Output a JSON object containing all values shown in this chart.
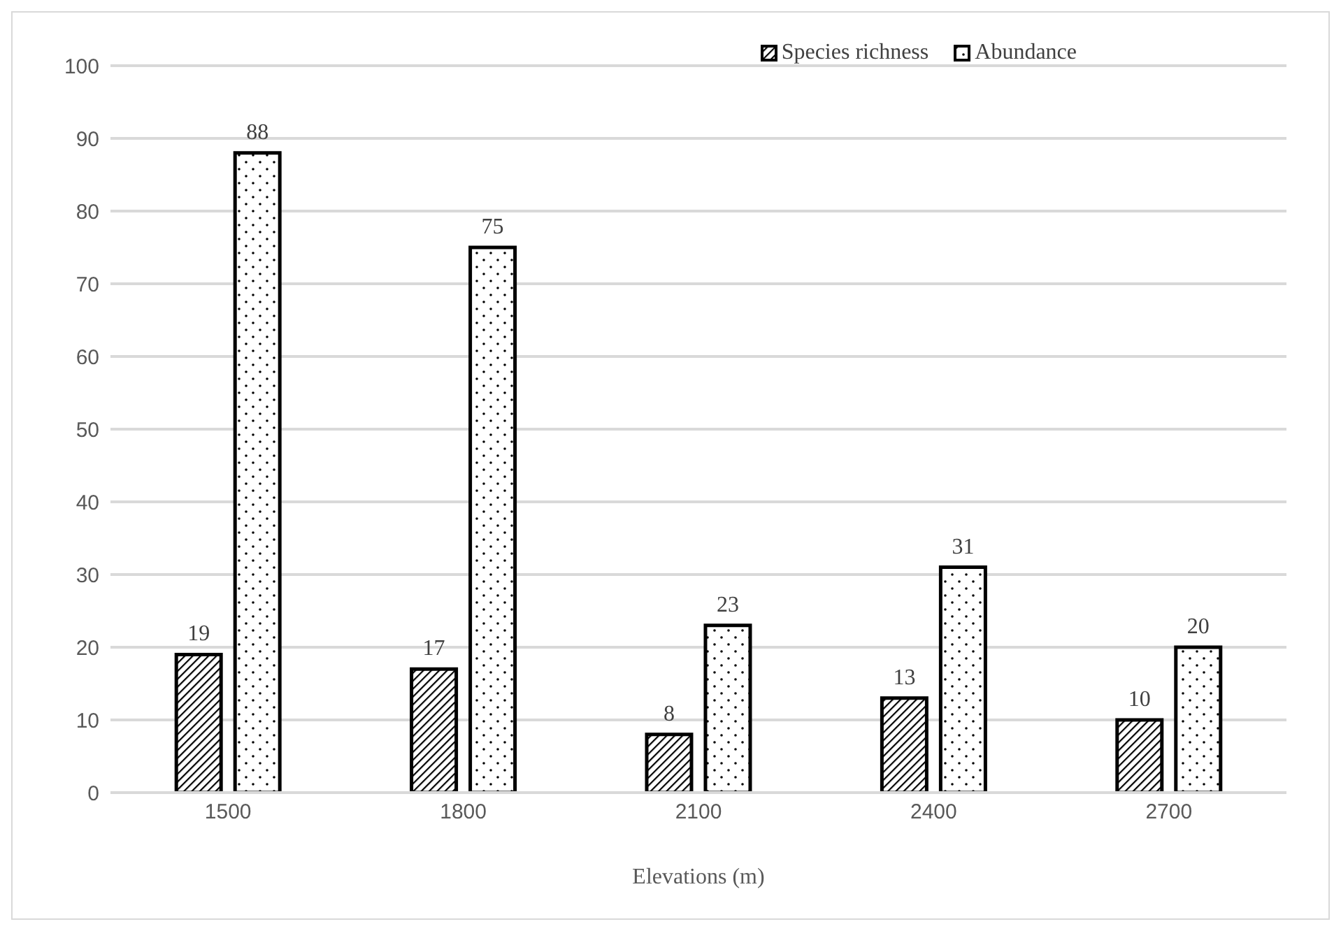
{
  "chart_data": {
    "type": "bar",
    "xlabel": "Elevations (m)",
    "categories": [
      "1500",
      "1800",
      "2100",
      "2400",
      "2700"
    ],
    "series": [
      {
        "name": "Species richness",
        "color": "#000000",
        "values": [
          19,
          17,
          8,
          13,
          10
        ]
      },
      {
        "name": "Abundance",
        "color": "#000000",
        "values": [
          88,
          75,
          23,
          31,
          20
        ]
      }
    ],
    "ylim": [
      0,
      100
    ],
    "yticks": [
      0,
      10,
      20,
      30,
      40,
      50,
      60,
      70,
      80,
      90,
      100
    ],
    "grid": "y",
    "legend": "top right",
    "data_labels": true
  }
}
